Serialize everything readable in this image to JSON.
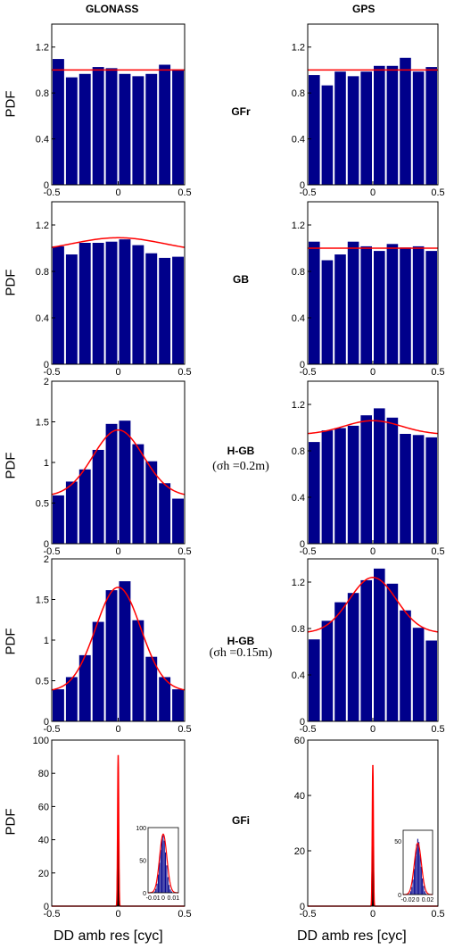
{
  "columns": [
    "GLONASS",
    "GPS"
  ],
  "ylabel": "PDF",
  "xlabel": "DD amb res [cyc]",
  "colors": {
    "bar": "#00008B",
    "curve": "#FF0000"
  },
  "rows": [
    {
      "label": "GFr",
      "sub": ""
    },
    {
      "label": "GB",
      "sub": ""
    },
    {
      "label": "H-GB",
      "sub": "(σh =0.2m)"
    },
    {
      "label": "H-GB",
      "sub": "(σh =0.15m)"
    },
    {
      "label": "GFi",
      "sub": ""
    }
  ],
  "chart_data": [
    {
      "type": "bar",
      "panel": "GLONASS GFr",
      "xlim": [
        -0.5,
        0.5
      ],
      "ylim": [
        0,
        1.4
      ],
      "xticks": [
        "-0.5",
        "0",
        "0.5"
      ],
      "yticks": [
        "0",
        "0.4",
        "0.8",
        "1.2"
      ],
      "bins": [
        -0.45,
        -0.35,
        -0.25,
        -0.15,
        -0.05,
        0.05,
        0.15,
        0.25,
        0.35,
        0.45
      ],
      "values": [
        1.1,
        0.94,
        0.97,
        1.03,
        1.02,
        0.97,
        0.95,
        0.97,
        1.05,
        1.01
      ],
      "fit": "flat",
      "fit_params": {
        "level": 1.0
      }
    },
    {
      "type": "bar",
      "panel": "GPS GFr",
      "xlim": [
        -0.5,
        0.5
      ],
      "ylim": [
        0,
        1.4
      ],
      "xticks": [
        "-0.5",
        "0",
        "0.5"
      ],
      "yticks": [
        "0",
        "0.4",
        "0.8",
        "1.2"
      ],
      "bins": [
        -0.45,
        -0.35,
        -0.25,
        -0.15,
        -0.05,
        0.05,
        0.15,
        0.25,
        0.35,
        0.45
      ],
      "values": [
        0.96,
        0.87,
        0.99,
        0.95,
        0.99,
        1.04,
        1.04,
        1.11,
        0.99,
        1.03
      ],
      "fit": "flat",
      "fit_params": {
        "level": 1.0
      }
    },
    {
      "type": "bar",
      "panel": "GLONASS GB",
      "xlim": [
        -0.5,
        0.5
      ],
      "ylim": [
        0,
        1.4
      ],
      "xticks": [
        "-0.5",
        "0",
        "0.5"
      ],
      "yticks": [
        "0",
        "0.4",
        "0.8",
        "1.2"
      ],
      "bins": [
        -0.45,
        -0.35,
        -0.25,
        -0.15,
        -0.05,
        0.05,
        0.15,
        0.25,
        0.35,
        0.45
      ],
      "values": [
        1.02,
        0.95,
        1.05,
        1.05,
        1.06,
        1.08,
        1.03,
        0.96,
        0.92,
        0.93
      ],
      "fit": "peak",
      "fit_params": {
        "base": 0.96,
        "peak": 1.09,
        "sigma": 0.35
      }
    },
    {
      "type": "bar",
      "panel": "GPS GB",
      "xlim": [
        -0.5,
        0.5
      ],
      "ylim": [
        0,
        1.4
      ],
      "xticks": [
        "-0.5",
        "0",
        "0.5"
      ],
      "yticks": [
        "0",
        "0.4",
        "0.8",
        "1.2"
      ],
      "bins": [
        -0.45,
        -0.35,
        -0.25,
        -0.15,
        -0.05,
        0.05,
        0.15,
        0.25,
        0.35,
        0.45
      ],
      "values": [
        1.06,
        0.9,
        0.95,
        1.06,
        1.02,
        0.98,
        1.04,
        1.01,
        1.02,
        0.98
      ],
      "fit": "flat",
      "fit_params": {
        "level": 1.0
      }
    },
    {
      "type": "bar",
      "panel": "GLONASS H-GB 0.2m",
      "xlim": [
        -0.5,
        0.5
      ],
      "ylim": [
        0,
        2
      ],
      "xticks": [
        "-0.5",
        "0",
        "0.5"
      ],
      "yticks": [
        "0",
        "0.5",
        "1",
        "1.5",
        "2"
      ],
      "bins": [
        -0.45,
        -0.35,
        -0.25,
        -0.15,
        -0.05,
        0.05,
        0.15,
        0.25,
        0.35,
        0.45
      ],
      "values": [
        0.6,
        0.77,
        0.92,
        1.16,
        1.48,
        1.52,
        1.23,
        1.02,
        0.75,
        0.56
      ],
      "fit": "peak",
      "fit_params": {
        "base": 0.58,
        "peak": 1.4,
        "sigma": 0.19
      }
    },
    {
      "type": "bar",
      "panel": "GPS H-GB 0.2m",
      "xlim": [
        -0.5,
        0.5
      ],
      "ylim": [
        0,
        1.4
      ],
      "xticks": [
        "-0.5",
        "0",
        "0.5"
      ],
      "yticks": [
        "0",
        "0.4",
        "0.8",
        "1.2"
      ],
      "bins": [
        -0.45,
        -0.35,
        -0.25,
        -0.15,
        -0.05,
        0.05,
        0.15,
        0.25,
        0.35,
        0.45
      ],
      "values": [
        0.88,
        0.98,
        1.0,
        1.02,
        1.11,
        1.17,
        1.09,
        0.95,
        0.94,
        0.92
      ],
      "fit": "peak",
      "fit_params": {
        "base": 0.94,
        "peak": 1.06,
        "sigma": 0.22
      }
    },
    {
      "type": "bar",
      "panel": "GLONASS H-GB 0.15m",
      "xlim": [
        -0.5,
        0.5
      ],
      "ylim": [
        0,
        2
      ],
      "xticks": [
        "-0.5",
        "0",
        "0.5"
      ],
      "yticks": [
        "0",
        "0.5",
        "1",
        "1.5",
        "2"
      ],
      "bins": [
        -0.45,
        -0.35,
        -0.25,
        -0.15,
        -0.05,
        0.05,
        0.15,
        0.25,
        0.35,
        0.45
      ],
      "values": [
        0.4,
        0.55,
        0.82,
        1.23,
        1.62,
        1.73,
        1.25,
        0.8,
        0.55,
        0.4
      ],
      "fit": "peak",
      "fit_params": {
        "base": 0.37,
        "peak": 1.65,
        "sigma": 0.17
      }
    },
    {
      "type": "bar",
      "panel": "GPS H-GB 0.15m",
      "xlim": [
        -0.5,
        0.5
      ],
      "ylim": [
        0,
        1.4
      ],
      "xticks": [
        "-0.5",
        "0",
        "0.5"
      ],
      "yticks": [
        "0",
        "0.4",
        "0.8",
        "1.2"
      ],
      "bins": [
        -0.45,
        -0.35,
        -0.25,
        -0.15,
        -0.05,
        0.05,
        0.15,
        0.25,
        0.35,
        0.45
      ],
      "values": [
        0.71,
        0.87,
        1.03,
        1.11,
        1.22,
        1.32,
        1.19,
        0.96,
        0.81,
        0.7
      ],
      "fit": "peak",
      "fit_params": {
        "base": 0.76,
        "peak": 1.24,
        "sigma": 0.18
      }
    },
    {
      "type": "bar",
      "panel": "GLONASS GFi",
      "xlim": [
        -0.5,
        0.5
      ],
      "ylim": [
        0,
        100
      ],
      "xticks": [
        "-0.5",
        "0",
        "0.5"
      ],
      "yticks": [
        "0",
        "20",
        "40",
        "60",
        "80",
        "100"
      ],
      "spike_x": 0,
      "spike_peak": 91,
      "inset": {
        "xlim": [
          -0.015,
          0.015
        ],
        "ylim": [
          0,
          100
        ],
        "xticks": [
          "-0.01",
          "0",
          "0.01"
        ],
        "yticks": [
          "0",
          "50",
          "100"
        ],
        "values": [
          2,
          6,
          14,
          28,
          46,
          66,
          82,
          88,
          80,
          62,
          42,
          24,
          12,
          5,
          2
        ],
        "fit_peak": 90
      }
    },
    {
      "type": "bar",
      "panel": "GPS GFi",
      "xlim": [
        -0.5,
        0.5
      ],
      "ylim": [
        0,
        60
      ],
      "xticks": [
        "-0.5",
        "0",
        "0.5"
      ],
      "yticks": [
        "0",
        "20",
        "40",
        "60"
      ],
      "spike_x": 0,
      "spike_peak": 51,
      "inset": {
        "xlim": [
          -0.03,
          0.03
        ],
        "ylim": [
          0,
          60
        ],
        "xticks": [
          "-0.02",
          "0",
          "0.02"
        ],
        "yticks": [
          "0",
          "50"
        ],
        "values": [
          1,
          3,
          7,
          14,
          24,
          36,
          47,
          52,
          49,
          38,
          26,
          15,
          8,
          3,
          1
        ],
        "fit_peak": 48
      }
    }
  ]
}
